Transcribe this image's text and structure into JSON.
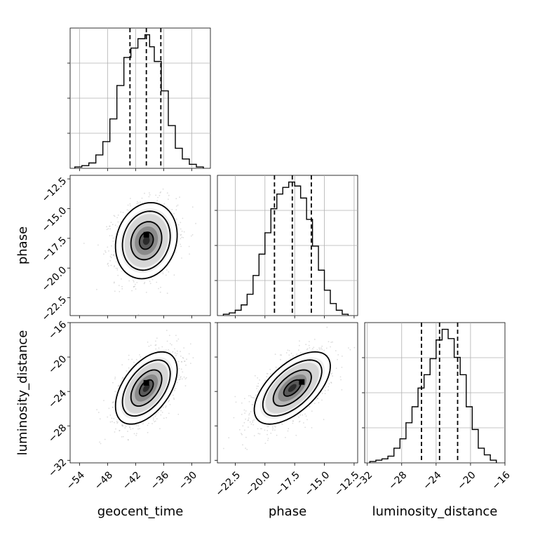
{
  "chart_data": {
    "type": "corner",
    "parameters": [
      "geocent_time",
      "phase",
      "luminosity_distance"
    ],
    "colors": {
      "line": "#000000",
      "grid": "#b0b0b0",
      "points": "#9e9e9e"
    },
    "grid": true,
    "axes": {
      "geocent_time": {
        "range": [
          -56,
          -26
        ],
        "ticks": [
          -54,
          -48,
          -42,
          -36,
          -30
        ],
        "tick_labels": [
          "−54",
          "−48",
          "−42",
          "−36",
          "−30"
        ]
      },
      "phase": {
        "range": [
          -24,
          -12.2
        ],
        "ticks": [
          -22.5,
          -20.0,
          -17.5,
          -15.0,
          -12.5
        ],
        "tick_labels": [
          "−22.5",
          "−20.0",
          "−17.5",
          "−15.0",
          "−12.5"
        ]
      },
      "luminosity_distance": {
        "range": [
          -32.3,
          -16
        ],
        "ticks": [
          -32,
          -28,
          -24,
          -20,
          -16
        ],
        "tick_labels": [
          "−32",
          "−28",
          "−24",
          "−20",
          "−16"
        ]
      }
    },
    "histograms": [
      {
        "parameter": "geocent_time",
        "bin_edges": [
          -55,
          -53.5,
          -52,
          -50.5,
          -49,
          -47.5,
          -46,
          -44.5,
          -43,
          -41.5,
          -40,
          -39,
          -38,
          -36.5,
          -35,
          -33.5,
          -32,
          -30.5,
          -29,
          -27.5
        ],
        "counts": [
          1,
          2,
          4,
          10,
          20,
          37,
          62,
          83,
          90,
          97,
          100,
          91,
          80,
          58,
          32,
          15,
          7,
          3,
          1
        ],
        "quantiles": [
          -43.2,
          -39.7,
          -36.6
        ]
      },
      {
        "parameter": "phase",
        "bin_edges": [
          -23.5,
          -23,
          -22.5,
          -22,
          -21.5,
          -21,
          -20.5,
          -20,
          -19.5,
          -19,
          -18.5,
          -18,
          -17.5,
          -17,
          -16.5,
          -16,
          -15.5,
          -15,
          -14.5,
          -14,
          -13.5,
          -13
        ],
        "counts": [
          1,
          2,
          4,
          8,
          16,
          30,
          46,
          62,
          80,
          91,
          96,
          100,
          97,
          88,
          72,
          52,
          34,
          19,
          9,
          4,
          1
        ],
        "quantiles": [
          -19.2,
          -17.7,
          -16.1
        ]
      },
      {
        "parameter": "luminosity_distance",
        "bin_edges": [
          -31.7,
          -31,
          -30.3,
          -29.6,
          -28.9,
          -28.2,
          -27.5,
          -26.8,
          -26.1,
          -25.4,
          -24.7,
          -24,
          -23.3,
          -22.6,
          -21.9,
          -21.2,
          -20.5,
          -19.8,
          -19.1,
          -18.4,
          -17.7,
          -17
        ],
        "counts": [
          1,
          2,
          3,
          5,
          11,
          18,
          30,
          42,
          56,
          66,
          78,
          92,
          100,
          93,
          79,
          66,
          42,
          25,
          11,
          6,
          2
        ],
        "quantiles": [
          -25.7,
          -23.6,
          -21.5
        ]
      }
    ],
    "joint": [
      {
        "x": "geocent_time",
        "y": "phase",
        "mean": [
          -39.7,
          -17.7
        ],
        "sigma": [
          3.3,
          1.6
        ],
        "corr": 0.15,
        "peak": [
          -39.7,
          -17.2
        ]
      },
      {
        "x": "geocent_time",
        "y": "luminosity_distance",
        "mean": [
          -39.7,
          -23.6
        ],
        "sigma": [
          3.3,
          2.1
        ],
        "corr": 0.5,
        "peak": [
          -39.7,
          -23.0
        ]
      },
      {
        "x": "phase",
        "y": "luminosity_distance",
        "mean": [
          -17.7,
          -23.6
        ],
        "sigma": [
          1.6,
          2.1
        ],
        "corr": 0.6,
        "peak": [
          -16.9,
          -22.9
        ]
      }
    ]
  }
}
